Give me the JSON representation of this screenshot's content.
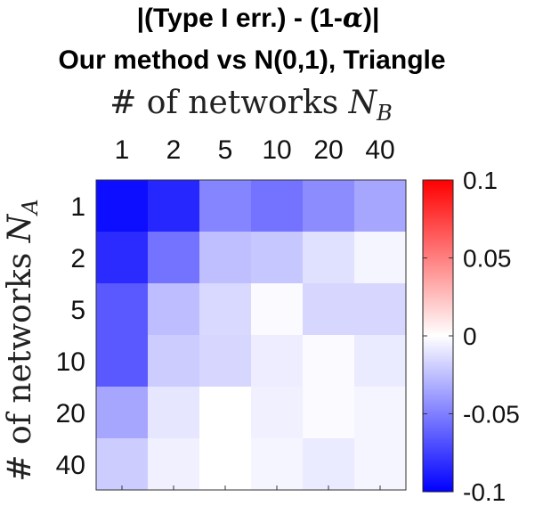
{
  "chart_data": {
    "type": "heatmap",
    "title_line1_pre": "|(Type I err.) - (1-",
    "title_line1_sym": "α",
    "title_line1_post": ")|",
    "title_line2": "Our method vs N(0,1), Triangle",
    "xlabel_text": "# of networks ",
    "xlabel_var": "N",
    "xlabel_sub": "B",
    "ylabel_text": "# of networks ",
    "ylabel_var": "N",
    "ylabel_sub": "A",
    "x_categories": [
      "1",
      "2",
      "5",
      "10",
      "20",
      "40"
    ],
    "y_categories": [
      "1",
      "2",
      "5",
      "10",
      "20",
      "40"
    ],
    "values": [
      [
        -0.095,
        -0.085,
        -0.048,
        -0.055,
        -0.045,
        -0.035
      ],
      [
        -0.083,
        -0.055,
        -0.025,
        -0.022,
        -0.012,
        -0.004
      ],
      [
        -0.065,
        -0.026,
        -0.015,
        -0.002,
        -0.016,
        -0.016
      ],
      [
        -0.065,
        -0.02,
        -0.016,
        -0.007,
        -0.002,
        -0.008
      ],
      [
        -0.035,
        -0.01,
        0.0,
        -0.006,
        -0.002,
        -0.004
      ],
      [
        -0.02,
        -0.006,
        0.0,
        -0.004,
        -0.008,
        -0.004
      ]
    ],
    "colorbar": {
      "range": [
        -0.1,
        0.1
      ],
      "ticks": [
        0.1,
        0.05,
        0,
        -0.05,
        -0.1
      ],
      "tick_labels": [
        "0.1",
        "0.05",
        "0",
        "-0.05",
        "-0.1"
      ],
      "colormap": [
        "#0000ff",
        "#ffffff",
        "#ff0000"
      ]
    }
  }
}
